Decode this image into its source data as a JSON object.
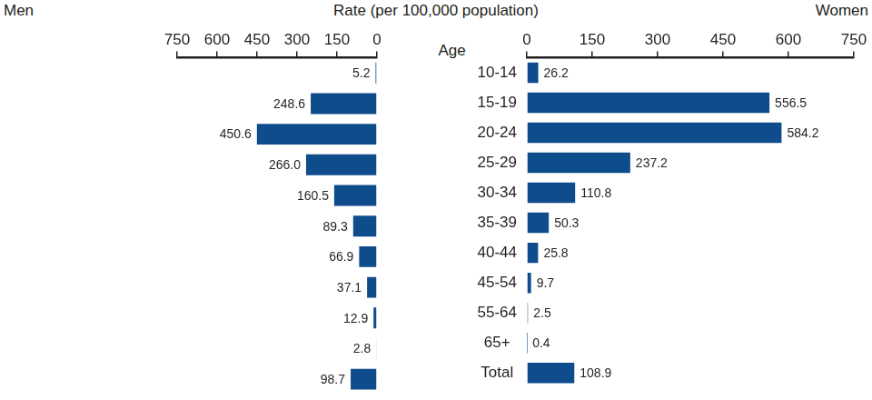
{
  "chart_data": {
    "type": "bar",
    "orientation": "horizontal",
    "xlabel": "Rate (per 100,000 population)",
    "ylabel": "Age",
    "categories": [
      "10-14",
      "15-19",
      "20-24",
      "25-29",
      "30-34",
      "35-39",
      "40-44",
      "45-54",
      "55-64",
      "65+",
      "Total"
    ],
    "series": [
      {
        "name": "Men",
        "color": "#0f4c8c",
        "values": [
          5.2,
          248.6,
          450.6,
          266.0,
          160.5,
          89.3,
          66.9,
          37.1,
          12.9,
          2.8,
          98.7
        ],
        "value_labels": [
          "5.2",
          "248.6",
          "450.6",
          "266.0",
          "160.5",
          "89.3",
          "66.9",
          "37.1",
          "12.9",
          "2.8",
          "98.7"
        ]
      },
      {
        "name": "Women",
        "color": "#0f4c8c",
        "values": [
          26.2,
          556.5,
          584.2,
          237.2,
          110.8,
          50.3,
          25.8,
          9.7,
          2.5,
          0.4,
          108.9
        ]
      }
    ],
    "xlim": [
      0,
      750
    ],
    "xticks": [
      0,
      150,
      300,
      450,
      600,
      750
    ],
    "grid": false,
    "data_labels": true
  }
}
